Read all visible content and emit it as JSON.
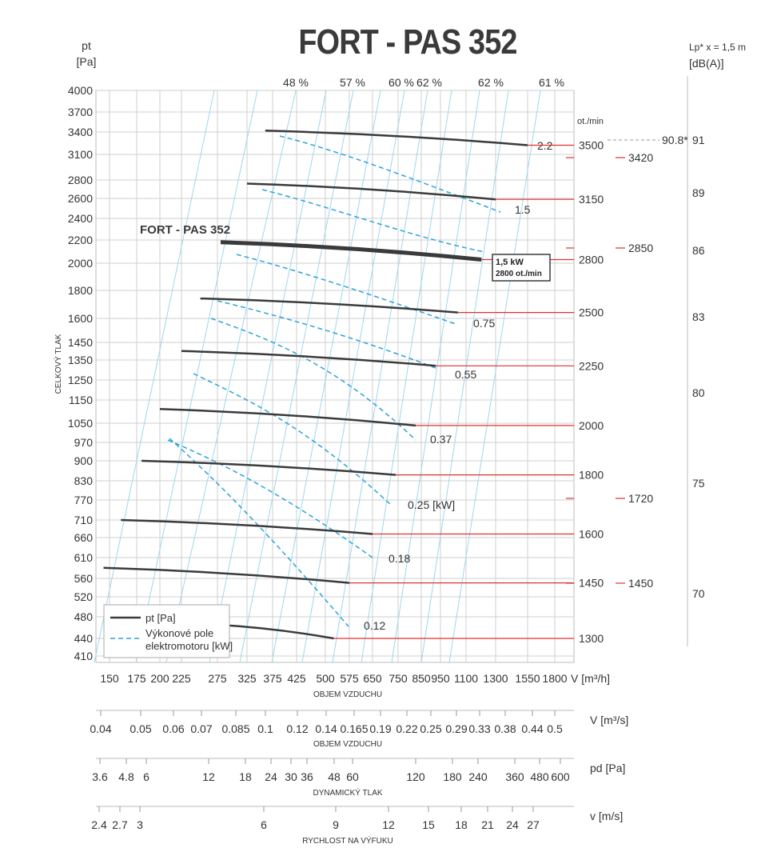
{
  "title": "FORT - PAS 352",
  "chart_data": {
    "type": "line",
    "title": "FORT - PAS 352",
    "ylabel_unit": "pt",
    "ylabel_unit2": "[Pa]",
    "ylabel": "CELKOVÝ TLAK",
    "y_ticks": [
      410,
      440,
      480,
      520,
      560,
      610,
      660,
      710,
      770,
      830,
      900,
      970,
      1050,
      1150,
      1250,
      1350,
      1450,
      1600,
      1800,
      2000,
      2200,
      2400,
      2600,
      2800,
      3100,
      3400,
      3700,
      4000
    ],
    "x_ticks": [
      150,
      175,
      200,
      225,
      275,
      325,
      375,
      425,
      500,
      575,
      650,
      750,
      850,
      950,
      1100,
      1300,
      1550,
      1800
    ],
    "xunit": "V [m³/h]",
    "xlabel": "OBJEM VZDUCHU",
    "eff_labels": [
      "48 %",
      "57 %",
      "60 %",
      "62 %",
      "62 %",
      "61 %"
    ],
    "rpm_header": "ot./min",
    "rpm_lines": [
      {
        "rpm": "3500",
        "x": [
          360,
          1550
        ],
        "y": [
          3420,
          3220
        ]
      },
      {
        "rpm": "3150",
        "x": [
          325,
          1300
        ],
        "y": [
          2760,
          2590
        ]
      },
      {
        "rpm": "2800",
        "x": [
          280,
          1200
        ],
        "y": [
          2180,
          2030
        ]
      },
      {
        "rpm": "2500",
        "x": [
          250,
          1050
        ],
        "y": [
          1740,
          1640
        ]
      },
      {
        "rpm": "2250",
        "x": [
          225,
          925
        ],
        "y": [
          1400,
          1320
        ]
      },
      {
        "rpm": "2000",
        "x": [
          200,
          825
        ],
        "y": [
          1110,
          1040
        ]
      },
      {
        "rpm": "1800",
        "x": [
          180,
          740
        ],
        "y": [
          900,
          850
        ]
      },
      {
        "rpm": "1600",
        "x": [
          160,
          650
        ],
        "y": [
          710,
          670
        ]
      },
      {
        "rpm": "1450",
        "x": [
          145,
          575
        ],
        "y": [
          585,
          550
        ]
      },
      {
        "rpm": "1300",
        "x": [
          275,
          525
        ],
        "y": [
          465,
          440
        ]
      }
    ],
    "power_labels": [
      "2.2",
      "1.5",
      "0.75",
      "0.55",
      "0.37",
      "0.25  [kW]",
      "0.18",
      "0.12"
    ],
    "highlight_label": "FORT - PAS 352",
    "op_point": {
      "line1": "1,5 kW",
      "line2": "2800 ot./min"
    },
    "noise_header": "Lp* x = 1,5 m",
    "noise_unit": "[dB(A)]",
    "noise_ticks": [
      "91",
      "89",
      "86",
      "83",
      "80",
      "75",
      "70"
    ],
    "noise_rpm": [
      "3420",
      "2850",
      "1720",
      "1450"
    ],
    "noise_special": "90.8*",
    "legend": [
      "pt [Pa]",
      "Výkonové pole",
      "elektromotoru [kW]"
    ],
    "scale_flow_ms": {
      "ticks": [
        "0.04",
        "0.05",
        "0.06",
        "0.07",
        "0.085",
        "0.1",
        "0.12",
        "0.14",
        "0.165",
        "0.19",
        "0.22",
        "0.25",
        "0.29",
        "0.33",
        "0.38",
        "0.44",
        "0.5"
      ],
      "unit": "V  [m³/s]",
      "label": "OBJEM VZDUCHU"
    },
    "scale_pd": {
      "ticks": [
        "3.6",
        "4.8",
        "6",
        "12",
        "18",
        "24",
        "30",
        "36",
        "48",
        "60",
        "120",
        "180",
        "240",
        "360",
        "480",
        "600"
      ],
      "unit": "pd  [Pa]",
      "label": "DYNAMICKÝ TLAK"
    },
    "scale_v": {
      "ticks": [
        "2.4",
        "2.7",
        "3",
        "6",
        "9",
        "12",
        "15",
        "18",
        "21",
        "24",
        "27"
      ],
      "unit": "v  [m/s]",
      "label": "RYCHLOST NA VÝFUKU"
    }
  }
}
